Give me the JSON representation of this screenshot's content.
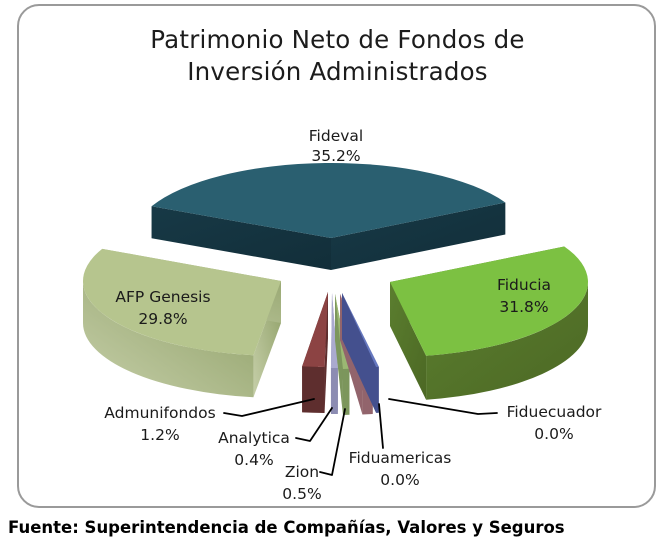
{
  "header": {
    "line1": "Patrimonio Neto de Fondos de",
    "line2": "Inversión Administrados"
  },
  "footer": {
    "source": "Fuente: Superintendencia de Compañías, Valores y Seguros"
  },
  "chart_data": {
    "type": "pie",
    "style": "3d-exploded",
    "title": "Patrimonio Neto de Fondos de Inversión Administrados",
    "unit": "%",
    "legend_position": "none (direct category labels, small slices use black leader lines)",
    "background": "#ffffff",
    "categories": [
      "Fideval",
      "Fiducia",
      "Fiduecuador",
      "Fiduamericas",
      "Zion",
      "Analytica",
      "Admunifondos",
      "AFP Genesis"
    ],
    "values": [
      35.2,
      31.8,
      0.0,
      0.0,
      0.5,
      0.4,
      1.2,
      29.8
    ],
    "slices": [
      {
        "name": "Fideval",
        "value": 35.2,
        "pct_label": "35.2%",
        "color": "#2A5F70",
        "side_color": "#14333F"
      },
      {
        "name": "Fiducia",
        "value": 31.8,
        "pct_label": "31.8%",
        "color": "#7CC142",
        "side_color": "#537428"
      },
      {
        "name": "Fiduecuador",
        "value": 0.0,
        "pct_label": "0.0%",
        "color": "#6678C0",
        "side_color": "#44508E"
      },
      {
        "name": "Fiduamericas",
        "value": 0.0,
        "pct_label": "0.0%",
        "color": "#C08A92",
        "side_color": "#92646C"
      },
      {
        "name": "Zion",
        "value": 0.5,
        "pct_label": "0.5%",
        "color": "#9BB873",
        "side_color": "#7C965C"
      },
      {
        "name": "Analytica",
        "value": 0.4,
        "pct_label": "0.4%",
        "color": "#AAAACE",
        "side_color": "#8C8CB2"
      },
      {
        "name": "Admunifondos",
        "value": 1.2,
        "pct_label": "1.2%",
        "color": "#8C4343",
        "side_color": "#5E2E2E"
      },
      {
        "name": "AFP Genesis",
        "value": 29.8,
        "pct_label": "29.8%",
        "color": "#B6C58E",
        "side_color": "#9CAD74"
      }
    ],
    "label_text_color": "#1b1b1b",
    "leader_line_color": "#000000"
  }
}
